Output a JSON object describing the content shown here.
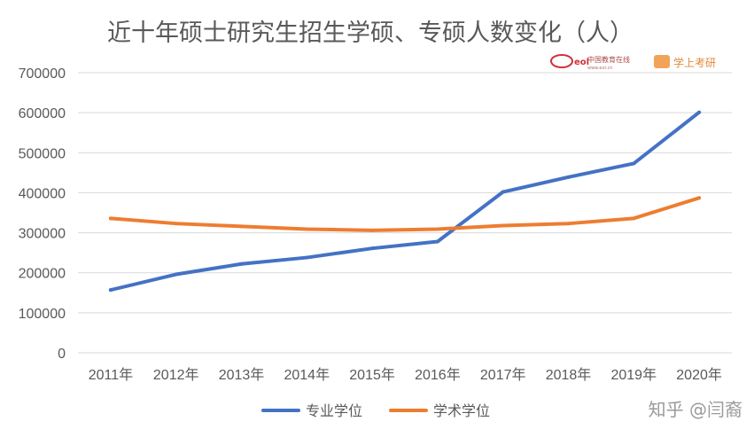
{
  "chart_data": {
    "type": "line",
    "title": "近十年硕士研究生招生学硕、专硕人数变化（人）",
    "categories": [
      "2011年",
      "2012年",
      "2013年",
      "2014年",
      "2015年",
      "2016年",
      "2017年",
      "2018年",
      "2019年",
      "2020年"
    ],
    "series": [
      {
        "name": "专业学位",
        "color": "#4472c4",
        "values": [
          157000,
          196000,
          222000,
          238000,
          261000,
          278000,
          402000,
          439000,
          473000,
          601000
        ]
      },
      {
        "name": "学术学位",
        "color": "#ed7d31",
        "values": [
          336000,
          323000,
          316000,
          309000,
          306000,
          309000,
          318000,
          323000,
          336000,
          387000
        ]
      }
    ],
    "ylim": [
      0,
      700000
    ],
    "yticks": [
      "0",
      "100000",
      "200000",
      "300000",
      "400000",
      "500000",
      "600000",
      "700000"
    ],
    "grid": true,
    "legend": "bottom"
  },
  "watermarks": {
    "eol_text": "中国教育在线",
    "eol_sub": "www.eol.cn",
    "xue_text": "学上考研",
    "zhihu": "知乎 @闫裔"
  }
}
